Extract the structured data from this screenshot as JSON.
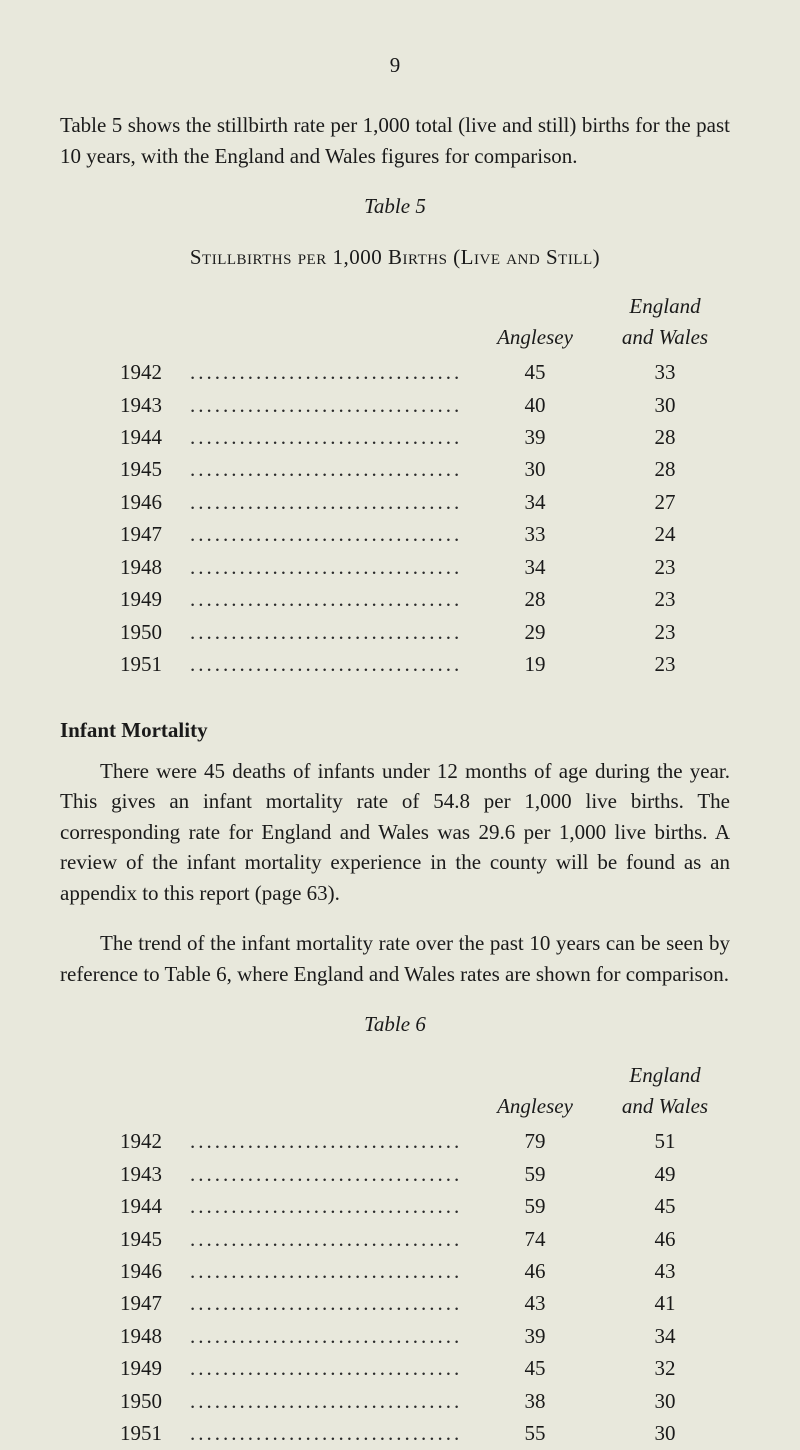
{
  "page_number": "9",
  "intro_paragraph": "Table 5 shows the stillbirth rate per 1,000 total (live and still) births for the past 10 years, with the England and Wales figures for comparison.",
  "table5": {
    "label": "Table 5",
    "title": "Stillbirths per 1,000 Births (Live and Still)",
    "header_col1": "Anglesey",
    "header_col2_line1": "England",
    "header_col2_line2": "and Wales",
    "rows": [
      {
        "year": "1942",
        "anglesey": "45",
        "england": "33"
      },
      {
        "year": "1943",
        "anglesey": "40",
        "england": "30"
      },
      {
        "year": "1944",
        "anglesey": "39",
        "england": "28"
      },
      {
        "year": "1945",
        "anglesey": "30",
        "england": "28"
      },
      {
        "year": "1946",
        "anglesey": "34",
        "england": "27"
      },
      {
        "year": "1947",
        "anglesey": "33",
        "england": "24"
      },
      {
        "year": "1948",
        "anglesey": "34",
        "england": "23"
      },
      {
        "year": "1949",
        "anglesey": "28",
        "england": "23"
      },
      {
        "year": "1950",
        "anglesey": "29",
        "england": "23"
      },
      {
        "year": "1951",
        "anglesey": "19",
        "england": "23"
      }
    ]
  },
  "section_heading": "Infant Mortality",
  "mortality_para1": "There were 45 deaths of infants under 12 months of age during the year. This gives an infant mortality rate of 54.8 per 1,000 live births. The corresponding rate for England and Wales was 29.6 per 1,000 live births. A review of the infant mortality experience in the county will be found as an appendix to this report (page 63).",
  "mortality_para2": "The trend of the infant mortality rate over the past 10 years can be seen by reference to Table 6, where England and Wales rates are shown for comparison.",
  "table6": {
    "label": "Table 6",
    "header_col1": "Anglesey",
    "header_col2_line1": "England",
    "header_col2_line2": "and Wales",
    "rows": [
      {
        "year": "1942",
        "anglesey": "79",
        "england": "51"
      },
      {
        "year": "1943",
        "anglesey": "59",
        "england": "49"
      },
      {
        "year": "1944",
        "anglesey": "59",
        "england": "45"
      },
      {
        "year": "1945",
        "anglesey": "74",
        "england": "46"
      },
      {
        "year": "1946",
        "anglesey": "46",
        "england": "43"
      },
      {
        "year": "1947",
        "anglesey": "43",
        "england": "41"
      },
      {
        "year": "1948",
        "anglesey": "39",
        "england": "34"
      },
      {
        "year": "1949",
        "anglesey": "45",
        "england": "32"
      },
      {
        "year": "1950",
        "anglesey": "38",
        "england": "30"
      },
      {
        "year": "1951",
        "anglesey": "55",
        "england": "30"
      }
    ]
  },
  "dots": "................................."
}
